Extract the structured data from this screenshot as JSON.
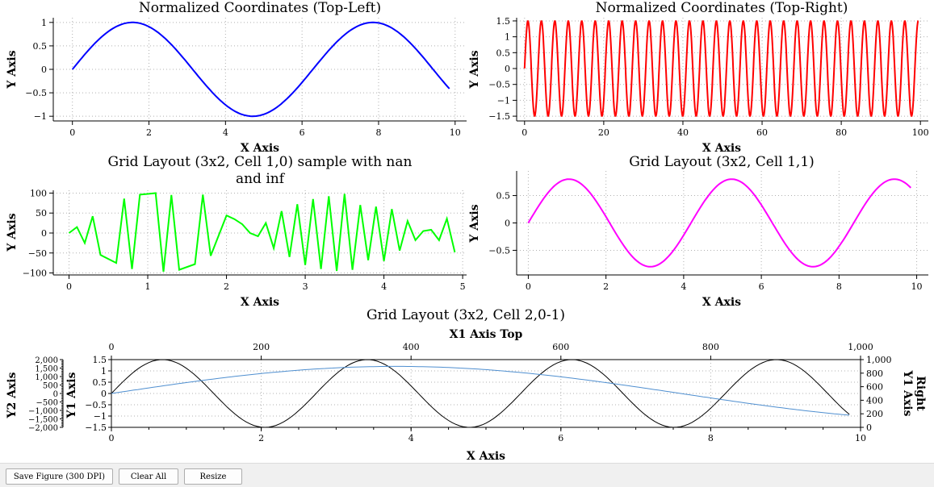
{
  "figure": {
    "plots": [
      {
        "id": "p1",
        "title": "Normalized Coordinates (Top-Left)",
        "xlabel": "X Axis",
        "ylabel": "Y Axis",
        "xticks": [
          "0",
          "2",
          "4",
          "6",
          "8",
          "10"
        ],
        "yticks": [
          "1",
          "0.5",
          "0",
          "−0.5",
          "−1"
        ]
      },
      {
        "id": "p2",
        "title": "Normalized Coordinates (Top-Right)",
        "xlabel": "X Axis",
        "ylabel": "Y Axis",
        "xticks": [
          "0",
          "20",
          "40",
          "60",
          "80",
          "100"
        ],
        "yticks": [
          "1.5",
          "1",
          "0.5",
          "0",
          "−0.5",
          "−1",
          "−1.5"
        ]
      },
      {
        "id": "p3",
        "title_line1": "Grid Layout (3x2, Cell 1,0) sample with nan",
        "title_line2": "and inf",
        "xlabel": "X Axis",
        "ylabel": "Y Axis",
        "xticks": [
          "0",
          "1",
          "2",
          "3",
          "4",
          "5"
        ],
        "yticks": [
          "100",
          "50",
          "0",
          "−50",
          "−100"
        ]
      },
      {
        "id": "p4",
        "title": "Grid Layout (3x2, Cell 1,1)",
        "xlabel": "X Axis",
        "ylabel": "Y Axis",
        "xticks": [
          "0",
          "2",
          "4",
          "6",
          "8",
          "10"
        ],
        "yticks": [
          "0.5",
          "0",
          "−0.5"
        ]
      },
      {
        "id": "p5",
        "title": "Grid Layout (3x2, Cell 2,0-1)",
        "xlabel": "X Axis",
        "x1top_label": "X1 Axis Top",
        "y1_label": "Y1 Axis",
        "y2_label": "Y2 Axis",
        "y1right_label_line1": "Y1 Axis",
        "y1right_label_line2": "Right",
        "xticks": [
          "0",
          "2",
          "4",
          "6",
          "8",
          "10"
        ],
        "xtop_ticks": [
          "0",
          "200",
          "400",
          "600",
          "800",
          "1,000"
        ],
        "y1ticks": [
          "1.5",
          "1",
          "0.5",
          "0",
          "−0.5",
          "−1",
          "−1.5"
        ],
        "y2ticks": [
          "2,000",
          "1,500",
          "1,000",
          "500",
          "0",
          "−500",
          "−1,000",
          "−1,500",
          "−2,000"
        ],
        "yrticks": [
          "1,000",
          "800",
          "600",
          "400",
          "200",
          "0"
        ]
      }
    ]
  },
  "chart_data": [
    {
      "type": "line",
      "title": "Normalized Coordinates (Top-Left)",
      "xlabel": "X Axis",
      "ylabel": "Y Axis",
      "xlim": [
        -0.5,
        10.3
      ],
      "ylim": [
        -1.1,
        1.1
      ],
      "grid": true,
      "color": "#0000ff",
      "function": "sin(x)",
      "x": [
        0,
        0.5,
        1,
        1.5,
        2,
        2.5,
        3,
        3.5,
        4,
        4.5,
        5,
        5.5,
        6,
        6.5,
        7,
        7.5,
        8,
        8.5,
        9,
        9.5,
        9.9
      ],
      "y": [
        0,
        0.48,
        0.84,
        1.0,
        0.91,
        0.6,
        0.14,
        -0.35,
        -0.76,
        -0.98,
        -0.96,
        -0.71,
        -0.28,
        0.22,
        0.66,
        0.94,
        0.99,
        0.8,
        0.41,
        -0.08,
        -0.46
      ]
    },
    {
      "type": "line",
      "title": "Normalized Coordinates (Top-Right)",
      "xlabel": "X Axis",
      "ylabel": "Y Axis",
      "xlim": [
        -2,
        102
      ],
      "ylim": [
        -1.65,
        1.6
      ],
      "grid": true,
      "color": "#ff0000",
      "function": "1.5*sin(2*pi*x/3.4)",
      "amplitude": 1.5,
      "period": 3.4,
      "x_range": [
        0,
        99.5
      ]
    },
    {
      "type": "line",
      "title": "Grid Layout (3x2, Cell 1,0) sample with nan and inf",
      "xlabel": "X Axis",
      "ylabel": "Y Axis",
      "xlim": [
        -0.2,
        5.05
      ],
      "ylim": [
        -105,
        107
      ],
      "grid": true,
      "color": "#00ff00",
      "x": [
        0,
        0.1,
        0.2,
        0.3,
        0.4,
        0.6,
        0.7,
        0.8,
        0.9,
        1.0,
        1.1,
        1.2,
        1.3,
        1.4,
        1.6,
        1.7,
        1.8,
        2.0,
        2.1,
        2.2,
        2.3,
        2.4,
        2.5,
        2.6,
        2.7,
        2.8,
        2.9,
        3.0,
        3.1,
        3.2,
        3.3,
        3.4,
        3.5,
        3.6,
        3.7,
        3.8,
        3.9,
        4.0,
        4.1,
        4.2,
        4.3,
        4.4,
        4.5,
        4.6,
        4.7,
        4.8,
        4.9
      ],
      "y": [
        0,
        15,
        -25,
        42,
        -55,
        -75,
        86,
        -90,
        96,
        98,
        100,
        -97,
        95,
        -92,
        -78,
        96,
        -57,
        44,
        35,
        22,
        0,
        -8,
        25,
        -38,
        55,
        -60,
        72,
        -80,
        85,
        -90,
        92,
        -95,
        98,
        -92,
        70,
        -68,
        66,
        -70,
        60,
        -44,
        30,
        -18,
        5,
        8,
        -18,
        36,
        -48
      ]
    },
    {
      "type": "line",
      "title": "Grid Layout (3x2, Cell 1,1)",
      "xlabel": "X Axis",
      "ylabel": "Y Axis",
      "xlim": [
        -0.3,
        10.3
      ],
      "ylim": [
        -0.95,
        0.95
      ],
      "grid": true,
      "color": "#ff00ff",
      "function": "0.8*sin(1.5*x)",
      "x_range": [
        0,
        9.9
      ]
    },
    {
      "type": "line",
      "title": "Grid Layout (3x2, Cell 2,0-1)",
      "xlabel": "X Axis",
      "x1_top_label": "X1 Axis Top",
      "y1_label": "Y1 Axis",
      "y2_label": "Y2 Axis",
      "y1_right_label": "Y1 Axis Right",
      "xlim": [
        0,
        10
      ],
      "x_top_lim": [
        0,
        1000
      ],
      "y1lim": [
        -1.5,
        1.5
      ],
      "y2lim": [
        -2000,
        2000
      ],
      "y_right_lim": [
        0,
        1000
      ],
      "grid": true,
      "series": [
        {
          "color": "#000000",
          "function": "1.5*sin(2.3*x)",
          "x_range": [
            0,
            9.9
          ]
        },
        {
          "color": "#4f8fd0",
          "function": "1.2*sin(x*pi/7.6)",
          "x_range": [
            0,
            9.9
          ]
        }
      ]
    }
  ]
}
